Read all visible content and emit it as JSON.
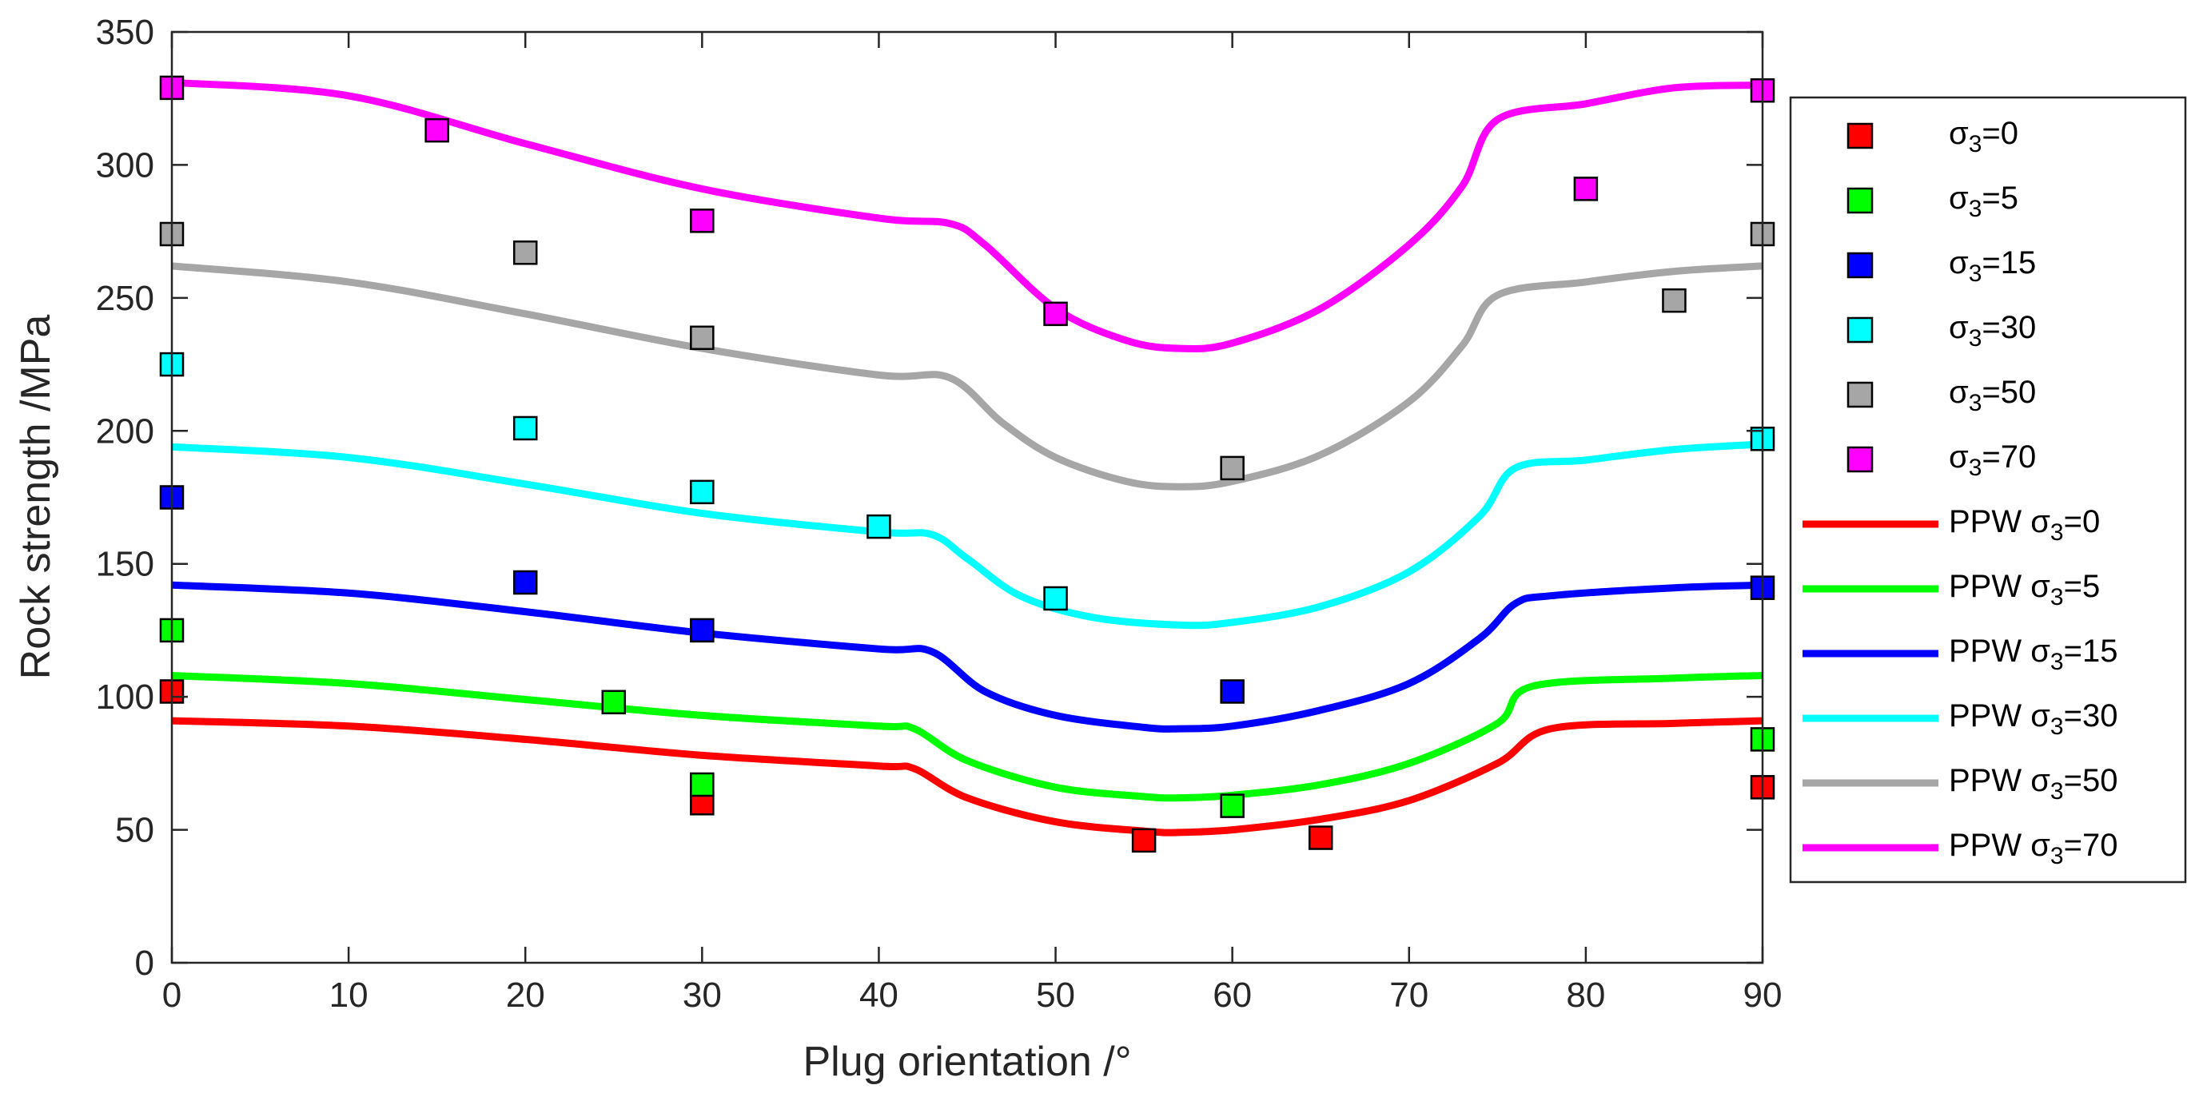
{
  "chart_data": {
    "type": "scatter",
    "title": "",
    "xlabel": "Plug orientation /°",
    "ylabel": "Rock strength /MPa",
    "xlim": [
      0,
      90
    ],
    "ylim": [
      0,
      350
    ],
    "xticks": [
      "0",
      "10",
      "20",
      "30",
      "40",
      "50",
      "60",
      "70",
      "80",
      "90"
    ],
    "yticks": [
      "0",
      "50",
      "100",
      "150",
      "200",
      "250",
      "300",
      "350"
    ],
    "grid": false,
    "legend_position": "right",
    "series": [
      {
        "name": "σ3=0",
        "color": "#ff0000",
        "kind": "marker",
        "legend": {
          "pre": "σ",
          "sub": "3",
          "post": "=0"
        },
        "points": [
          [
            0,
            102
          ],
          [
            30,
            60
          ],
          [
            55,
            46
          ],
          [
            65,
            47
          ],
          [
            90,
            66
          ]
        ]
      },
      {
        "name": "σ3=5",
        "color": "#00ff00",
        "kind": "marker",
        "legend": {
          "pre": "σ",
          "sub": "3",
          "post": "=5"
        },
        "points": [
          [
            0,
            125
          ],
          [
            25,
            98
          ],
          [
            30,
            67
          ],
          [
            60,
            59
          ],
          [
            90,
            84
          ]
        ]
      },
      {
        "name": "σ3=15",
        "color": "#0000ff",
        "kind": "marker",
        "legend": {
          "pre": "σ",
          "sub": "3",
          "post": "=15"
        },
        "points": [
          [
            0,
            175
          ],
          [
            20,
            143
          ],
          [
            30,
            125
          ],
          [
            60,
            102
          ],
          [
            90,
            141
          ]
        ]
      },
      {
        "name": "σ3=30",
        "color": "#00ffff",
        "kind": "marker",
        "legend": {
          "pre": "σ",
          "sub": "3",
          "post": "=30"
        },
        "points": [
          [
            0,
            225
          ],
          [
            20,
            201
          ],
          [
            30,
            177
          ],
          [
            40,
            164
          ],
          [
            50,
            137
          ],
          [
            90,
            197
          ]
        ]
      },
      {
        "name": "σ3=50",
        "color": "#a6a6a6",
        "kind": "marker",
        "legend": {
          "pre": "σ",
          "sub": "3",
          "post": "=50"
        },
        "points": [
          [
            0,
            274
          ],
          [
            20,
            267
          ],
          [
            30,
            235
          ],
          [
            60,
            186
          ],
          [
            85,
            249
          ],
          [
            90,
            274
          ]
        ]
      },
      {
        "name": "σ3=70",
        "color": "#ff00ff",
        "kind": "marker",
        "legend": {
          "pre": "σ",
          "sub": "3",
          "post": "=70"
        },
        "points": [
          [
            0,
            329
          ],
          [
            15,
            313
          ],
          [
            30,
            279
          ],
          [
            50,
            244
          ],
          [
            80,
            291
          ],
          [
            90,
            328
          ]
        ]
      },
      {
        "name": "PPW σ3=0",
        "color": "#ff0000",
        "kind": "line",
        "legend": {
          "pre": "PPW σ",
          "sub": "3",
          "post": "=0"
        },
        "points": [
          [
            0,
            91
          ],
          [
            10,
            89
          ],
          [
            20,
            84
          ],
          [
            30,
            78
          ],
          [
            40,
            74
          ],
          [
            42,
            73
          ],
          [
            45,
            62
          ],
          [
            50,
            53
          ],
          [
            55,
            49.5
          ],
          [
            57,
            49
          ],
          [
            60,
            50
          ],
          [
            65,
            54
          ],
          [
            70,
            61
          ],
          [
            75,
            75
          ],
          [
            78,
            88
          ],
          [
            85,
            90
          ],
          [
            90,
            91
          ]
        ]
      },
      {
        "name": "PPW σ3=5",
        "color": "#00ff00",
        "kind": "line",
        "legend": {
          "pre": "PPW σ",
          "sub": "3",
          "post": "=5"
        },
        "points": [
          [
            0,
            108
          ],
          [
            10,
            105
          ],
          [
            20,
            99
          ],
          [
            30,
            93
          ],
          [
            40,
            89
          ],
          [
            42,
            88
          ],
          [
            45,
            76
          ],
          [
            50,
            66
          ],
          [
            55,
            62.5
          ],
          [
            57,
            62
          ],
          [
            60,
            63
          ],
          [
            65,
            67
          ],
          [
            70,
            75
          ],
          [
            75,
            90
          ],
          [
            77,
            104
          ],
          [
            85,
            107
          ],
          [
            90,
            108
          ]
        ]
      },
      {
        "name": "PPW σ3=15",
        "color": "#0000ff",
        "kind": "line",
        "legend": {
          "pre": "PPW σ",
          "sub": "3",
          "post": "=15"
        },
        "points": [
          [
            0,
            142
          ],
          [
            10,
            139
          ],
          [
            20,
            132
          ],
          [
            30,
            124
          ],
          [
            40,
            118
          ],
          [
            43,
            117
          ],
          [
            46,
            102
          ],
          [
            50,
            93
          ],
          [
            55,
            88.5
          ],
          [
            57,
            88
          ],
          [
            60,
            89
          ],
          [
            65,
            95
          ],
          [
            70,
            105
          ],
          [
            74,
            122
          ],
          [
            76,
            135
          ],
          [
            78,
            138
          ],
          [
            85,
            141
          ],
          [
            90,
            142
          ]
        ]
      },
      {
        "name": "PPW σ3=30",
        "color": "#00ffff",
        "kind": "line",
        "legend": {
          "pre": "PPW σ",
          "sub": "3",
          "post": "=30"
        },
        "points": [
          [
            0,
            194
          ],
          [
            10,
            190
          ],
          [
            20,
            180
          ],
          [
            30,
            169
          ],
          [
            40,
            162
          ],
          [
            43,
            161
          ],
          [
            45,
            152
          ],
          [
            48,
            138
          ],
          [
            52,
            130
          ],
          [
            57,
            127
          ],
          [
            60,
            128
          ],
          [
            65,
            134
          ],
          [
            70,
            147
          ],
          [
            74,
            168
          ],
          [
            76,
            186
          ],
          [
            80,
            189
          ],
          [
            85,
            193
          ],
          [
            90,
            195
          ]
        ]
      },
      {
        "name": "PPW σ3=50",
        "color": "#a6a6a6",
        "kind": "line",
        "legend": {
          "pre": "PPW σ",
          "sub": "3",
          "post": "=50"
        },
        "points": [
          [
            0,
            262
          ],
          [
            10,
            256
          ],
          [
            20,
            244
          ],
          [
            30,
            231
          ],
          [
            40,
            221
          ],
          [
            44,
            220
          ],
          [
            47,
            203
          ],
          [
            50,
            190
          ],
          [
            54,
            181
          ],
          [
            57,
            179
          ],
          [
            60,
            181
          ],
          [
            65,
            191
          ],
          [
            70,
            211
          ],
          [
            73,
            232
          ],
          [
            75,
            251
          ],
          [
            80,
            256
          ],
          [
            85,
            260
          ],
          [
            90,
            262
          ]
        ]
      },
      {
        "name": "PPW σ3=70",
        "color": "#ff00ff",
        "kind": "line",
        "legend": {
          "pre": "PPW σ",
          "sub": "3",
          "post": "=70"
        },
        "points": [
          [
            0,
            331
          ],
          [
            10,
            326
          ],
          [
            20,
            308
          ],
          [
            30,
            291
          ],
          [
            40,
            280
          ],
          [
            44,
            278
          ],
          [
            46,
            270
          ],
          [
            50,
            246
          ],
          [
            54,
            234
          ],
          [
            57,
            231
          ],
          [
            60,
            233
          ],
          [
            65,
            246
          ],
          [
            70,
            270
          ],
          [
            73,
            292
          ],
          [
            75,
            317
          ],
          [
            80,
            323
          ],
          [
            85,
            329
          ],
          [
            90,
            330
          ]
        ]
      }
    ]
  }
}
